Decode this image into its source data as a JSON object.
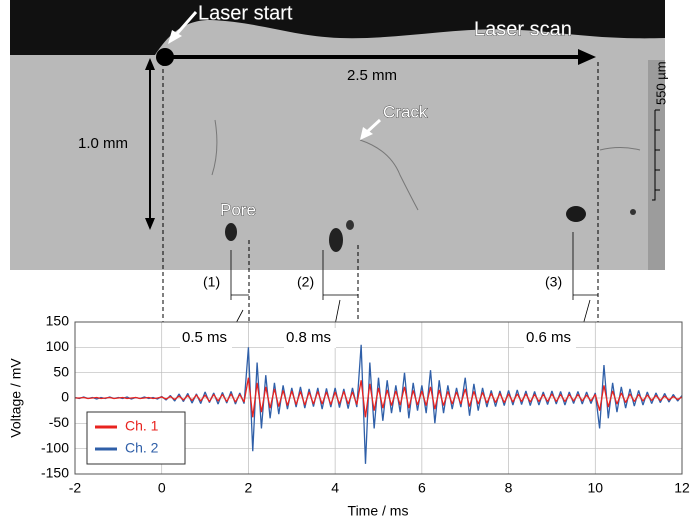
{
  "image_annotations": {
    "laser_start": "Laser start",
    "laser_scan": "Laser scan",
    "scan_length": "2.5 mm",
    "depth": "1.0 mm",
    "crack": "Crack",
    "pore": "Pore",
    "scale": "550 µm",
    "markers": [
      "(1)",
      "(2)",
      "(3)"
    ],
    "delays": [
      "0.5 ms",
      "0.8 ms",
      "0.6 ms"
    ]
  },
  "chart_data": {
    "type": "line",
    "xlabel": "Time / ms",
    "ylabel": "Voltage / mV",
    "xlim": [
      -2,
      12
    ],
    "xticks": [
      -2,
      0,
      2,
      4,
      6,
      8,
      10,
      12
    ],
    "ylim": [
      -150,
      150
    ],
    "yticks": [
      -150,
      -100,
      -50,
      0,
      50,
      100,
      150
    ],
    "grid": true,
    "legend": "lower left",
    "x": [
      -2.0,
      -1.9,
      -1.8,
      -1.7,
      -1.6,
      -1.5,
      -1.4,
      -1.3,
      -1.2,
      -1.1,
      -1.0,
      -0.9,
      -0.8,
      -0.7,
      -0.6,
      -0.5,
      -0.4,
      -0.3,
      -0.2,
      -0.1,
      0.0,
      0.1,
      0.2,
      0.3,
      0.4,
      0.5,
      0.6,
      0.7,
      0.8,
      0.9,
      1.0,
      1.1,
      1.2,
      1.3,
      1.4,
      1.5,
      1.6,
      1.7,
      1.8,
      1.9,
      2.0,
      2.1,
      2.2,
      2.3,
      2.4,
      2.5,
      2.6,
      2.7,
      2.8,
      2.9,
      3.0,
      3.1,
      3.2,
      3.3,
      3.4,
      3.5,
      3.6,
      3.7,
      3.8,
      3.9,
      4.0,
      4.1,
      4.2,
      4.3,
      4.4,
      4.5,
      4.6,
      4.7,
      4.8,
      4.9,
      5.0,
      5.1,
      5.2,
      5.3,
      5.4,
      5.5,
      5.6,
      5.7,
      5.8,
      5.9,
      6.0,
      6.1,
      6.2,
      6.3,
      6.4,
      6.5,
      6.6,
      6.7,
      6.8,
      6.9,
      7.0,
      7.1,
      7.2,
      7.3,
      7.4,
      7.5,
      7.6,
      7.7,
      7.8,
      7.9,
      8.0,
      8.1,
      8.2,
      8.3,
      8.4,
      8.5,
      8.6,
      8.7,
      8.8,
      8.9,
      9.0,
      9.1,
      9.2,
      9.3,
      9.4,
      9.5,
      9.6,
      9.7,
      9.8,
      9.9,
      10.0,
      10.1,
      10.2,
      10.3,
      10.4,
      10.5,
      10.6,
      10.7,
      10.8,
      10.9,
      11.0,
      11.1,
      11.2,
      11.3,
      11.4,
      11.5,
      11.6,
      11.7,
      11.8,
      11.9,
      12.0
    ],
    "series": [
      {
        "name": "Ch. 2",
        "color": "#2f5fa8",
        "values": [
          1,
          -1,
          2,
          -1,
          1,
          -2,
          1,
          -1,
          2,
          -1,
          1,
          -1,
          2,
          -2,
          1,
          -1,
          2,
          -1,
          1,
          -2,
          3,
          -4,
          5,
          -6,
          8,
          -7,
          9,
          -10,
          8,
          -11,
          12,
          -9,
          10,
          -12,
          11,
          -10,
          13,
          -12,
          10,
          -11,
          100,
          -105,
          70,
          -60,
          45,
          -40,
          30,
          -32,
          25,
          -22,
          20,
          -18,
          22,
          -20,
          18,
          -17,
          20,
          -22,
          19,
          -18,
          20,
          -19,
          18,
          -21,
          20,
          -18,
          105,
          -130,
          70,
          -60,
          40,
          -45,
          35,
          -30,
          25,
          -28,
          50,
          -40,
          30,
          -25,
          25,
          -30,
          55,
          -50,
          35,
          -30,
          25,
          -22,
          20,
          -18,
          40,
          -35,
          28,
          -25,
          20,
          -18,
          15,
          -17,
          14,
          -15,
          15,
          -14,
          16,
          -13,
          14,
          -15,
          13,
          -14,
          12,
          -13,
          14,
          -12,
          13,
          -14,
          12,
          -11,
          13,
          -12,
          12,
          -11,
          10,
          -60,
          65,
          -40,
          30,
          -28,
          22,
          -20,
          18,
          -16,
          15,
          -14,
          12,
          -11,
          10,
          -9,
          9,
          -8,
          7,
          -6,
          5
        ]
      },
      {
        "name": "Ch. 1",
        "color": "#e8231f",
        "values": [
          0,
          0,
          1,
          -1,
          0,
          1,
          -1,
          0,
          1,
          -1,
          0,
          1,
          -1,
          0,
          1,
          -1,
          0,
          1,
          -1,
          0,
          2,
          -2,
          3,
          -3,
          4,
          -4,
          5,
          -5,
          6,
          -6,
          6,
          -7,
          7,
          -6,
          7,
          -7,
          8,
          -8,
          7,
          -8,
          40,
          -38,
          30,
          -28,
          22,
          -20,
          18,
          -17,
          15,
          -15,
          14,
          -13,
          13,
          -14,
          12,
          -12,
          13,
          -12,
          12,
          -13,
          12,
          -12,
          13,
          -12,
          12,
          -13,
          35,
          -38,
          28,
          -25,
          20,
          -20,
          16,
          -15,
          14,
          -14,
          22,
          -20,
          15,
          -14,
          14,
          -15,
          22,
          -22,
          16,
          -15,
          13,
          -12,
          12,
          -12,
          18,
          -17,
          13,
          -12,
          11,
          -10,
          9,
          -9,
          9,
          -9,
          8,
          -8,
          8,
          -7,
          8,
          -8,
          7,
          -7,
          7,
          -7,
          8,
          -7,
          7,
          -7,
          7,
          -6,
          7,
          -6,
          6,
          -6,
          7,
          -25,
          25,
          -18,
          14,
          -12,
          10,
          -9,
          8,
          -7,
          7,
          -6,
          6,
          -5,
          5,
          -5,
          4,
          -4,
          3,
          -3,
          2
        ]
      }
    ]
  }
}
